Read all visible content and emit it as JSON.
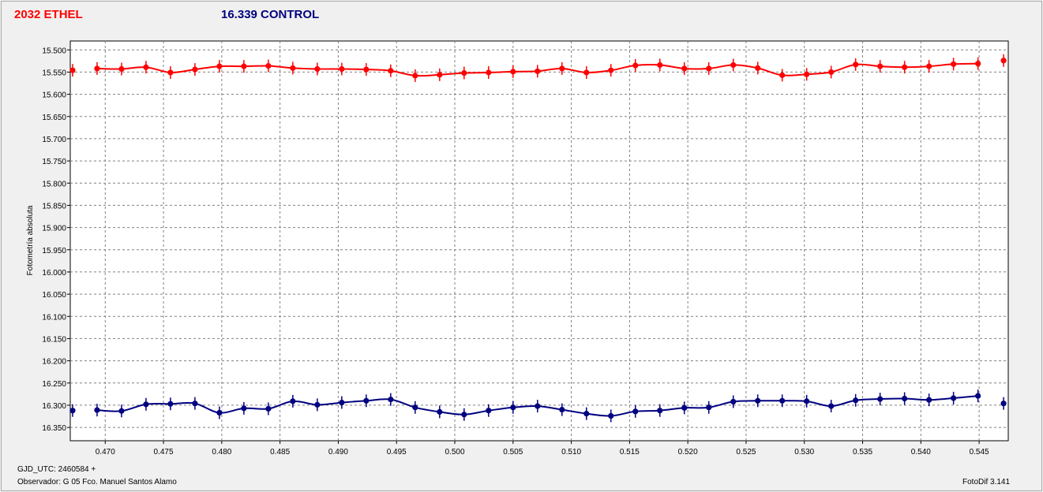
{
  "chart_data": {
    "type": "line",
    "ylabel": "Fotometría absoluta",
    "xlim": [
      0.467,
      0.5475
    ],
    "ylim": [
      15.48,
      16.38
    ],
    "y_inverted": true,
    "grid": true,
    "xticks": [
      "0.470",
      "0.475",
      "0.480",
      "0.485",
      "0.490",
      "0.495",
      "0.500",
      "0.505",
      "0.510",
      "0.515",
      "0.520",
      "0.525",
      "0.530",
      "0.535",
      "0.540",
      "0.545"
    ],
    "yticks": [
      "15.500",
      "15.550",
      "15.600",
      "15.650",
      "15.700",
      "15.750",
      "15.800",
      "15.850",
      "15.900",
      "15.950",
      "16.000",
      "16.050",
      "16.100",
      "16.150",
      "16.200",
      "16.250",
      "16.300",
      "16.350"
    ],
    "series": [
      {
        "name": "2032 ETHEL",
        "color": "#ff0000",
        "x": [
          0.4672,
          0.4693,
          0.4714,
          0.4735,
          0.4756,
          0.4777,
          0.4798,
          0.4819,
          0.484,
          0.4861,
          0.4882,
          0.4903,
          0.4924,
          0.4945,
          0.4966,
          0.4987,
          0.5008,
          0.5029,
          0.505,
          0.5071,
          0.5092,
          0.5113,
          0.5134,
          0.5155,
          0.5176,
          0.5197,
          0.5218,
          0.5239,
          0.526,
          0.5281,
          0.5302,
          0.5323,
          0.5344,
          0.5365,
          0.5386,
          0.5407,
          0.5428,
          0.5449,
          0.5471
        ],
        "values": [
          15.546,
          15.542,
          15.543,
          15.539,
          15.551,
          15.544,
          15.537,
          15.537,
          15.536,
          15.541,
          15.543,
          15.543,
          15.544,
          15.547,
          15.558,
          15.556,
          15.552,
          15.551,
          15.549,
          15.548,
          15.542,
          15.551,
          15.546,
          15.535,
          15.534,
          15.542,
          15.542,
          15.534,
          15.541,
          15.557,
          15.555,
          15.55,
          15.533,
          15.537,
          15.539,
          15.537,
          15.532,
          15.531,
          15.524
        ]
      },
      {
        "name": "16.339 CONTROL",
        "color": "#000080",
        "x": [
          0.4672,
          0.4693,
          0.4714,
          0.4735,
          0.4756,
          0.4777,
          0.4798,
          0.4819,
          0.484,
          0.4861,
          0.4882,
          0.4903,
          0.4924,
          0.4945,
          0.4966,
          0.4987,
          0.5008,
          0.5029,
          0.505,
          0.5071,
          0.5092,
          0.5113,
          0.5134,
          0.5155,
          0.5176,
          0.5197,
          0.5218,
          0.5239,
          0.526,
          0.5281,
          0.5302,
          0.5323,
          0.5344,
          0.5365,
          0.5386,
          0.5407,
          0.5428,
          0.5449,
          0.5471
        ],
        "values": [
          16.312,
          16.311,
          16.313,
          16.298,
          16.297,
          16.296,
          16.317,
          16.307,
          16.308,
          16.291,
          16.299,
          16.294,
          16.29,
          16.287,
          16.305,
          16.315,
          16.321,
          16.312,
          16.305,
          16.302,
          16.31,
          16.319,
          16.324,
          16.314,
          16.312,
          16.306,
          16.305,
          16.292,
          16.29,
          16.29,
          16.291,
          16.302,
          16.289,
          16.286,
          16.285,
          16.288,
          16.284,
          16.279,
          16.296
        ]
      }
    ]
  },
  "legend": {
    "a": "2032 ETHEL",
    "b": "16.339 CONTROL"
  },
  "footer": {
    "gjd": "GJD_UTC: 2460584 +",
    "observer": "Observador: G 05  Fco. Manuel Santos Alamo",
    "software": "FotoDif 3.141"
  }
}
